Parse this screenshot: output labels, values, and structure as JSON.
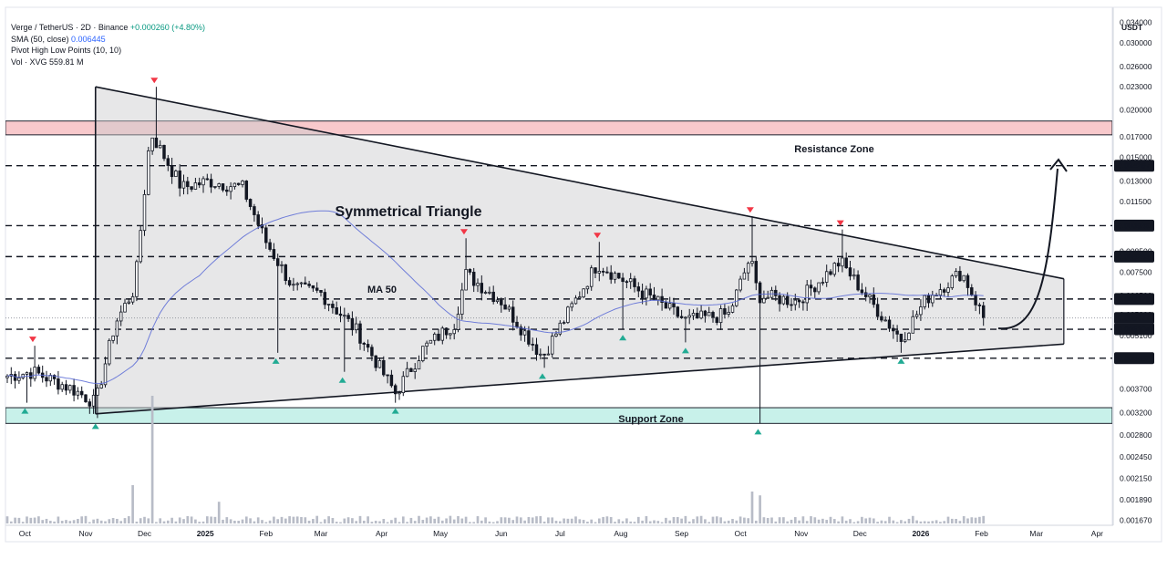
{
  "legend": {
    "symbol": "Verge / TetherUS · 2D · Binance",
    "change": "+0.000260 (+4.80%)",
    "sma_label": "SMA (50, close)",
    "sma_value": "0.006445",
    "pivot_label": "Pivot High Low Points (10, 10)",
    "vol_label": "Vol · XVG",
    "vol_value": "559.81 M"
  },
  "price_axis": {
    "currency": "USDT",
    "ticks": [
      "0.034000",
      "0.030000",
      "0.026000",
      "0.023000",
      "0.020000",
      "0.017000",
      "0.015000",
      "0.013000",
      "0.011500",
      "0.008500",
      "0.007500",
      "0.006500",
      "0.005800",
      "0.005100",
      "0.004500",
      "0.003700",
      "0.003200",
      "0.002800",
      "0.002450",
      "0.002150",
      "0.001890",
      "0.001670"
    ],
    "badges": [
      {
        "value": "0.014267",
        "style": "dark"
      },
      {
        "value": "0.009930",
        "style": "dark"
      },
      {
        "value": "0.008233",
        "style": "dark"
      },
      {
        "value": "0.006370",
        "style": "dark"
      },
      {
        "value": "0.005677",
        "style": "dark"
      },
      {
        "value": "13:12:12",
        "style": "countdown"
      },
      {
        "value": "0.005304",
        "style": "dark"
      },
      {
        "value": "0.004452",
        "style": "dark"
      }
    ]
  },
  "time_axis": {
    "labels": [
      "Oct",
      "Nov",
      "Dec",
      "2025",
      "Feb",
      "Mar",
      "Apr",
      "May",
      "Jun",
      "Jul",
      "Aug",
      "Sep",
      "Oct",
      "Nov",
      "Dec",
      "2026",
      "Feb",
      "Mar",
      "Apr"
    ],
    "bold": [
      "2025",
      "2026"
    ]
  },
  "annotations": {
    "triangle_title": "Symmetrical Triangle",
    "ma_label": "MA 50",
    "resistance_label": "Resistance Zone",
    "support_label": "Support Zone"
  },
  "chart_data": {
    "type": "candlestick",
    "title": "",
    "symbol": "Verge / TetherUS · 2D · Binance",
    "y_scale": "log",
    "ylim": [
      0.00155,
      0.036
    ],
    "x_range": [
      "2024-09-22",
      "2026-04-05"
    ],
    "key_levels": [
      0.014267,
      0.00993,
      0.008233,
      0.00637,
      0.005304,
      0.004452
    ],
    "last_price": 0.005677,
    "countdown": "13:12:12",
    "resistance_zone": [
      0.0172,
      0.0187
    ],
    "support_zone": [
      0.003,
      0.0033
    ],
    "sma_50_last": 0.006445,
    "pivot_highs": [
      {
        "date": "2024-10-05",
        "price": 0.0048
      },
      {
        "date": "2024-12-06",
        "price": 0.023
      },
      {
        "date": "2025-05-13",
        "price": 0.0092
      },
      {
        "date": "2025-07-20",
        "price": 0.009
      },
      {
        "date": "2025-10-06",
        "price": 0.0105
      },
      {
        "date": "2025-11-21",
        "price": 0.0097
      }
    ],
    "pivot_lows": [
      {
        "date": "2024-10-01",
        "price": 0.0034
      },
      {
        "date": "2024-11-06",
        "price": 0.0031
      },
      {
        "date": "2025-02-06",
        "price": 0.0046
      },
      {
        "date": "2025-03-12",
        "price": 0.0041
      },
      {
        "date": "2025-04-08",
        "price": 0.0034
      },
      {
        "date": "2025-06-22",
        "price": 0.0042
      },
      {
        "date": "2025-08-02",
        "price": 0.0053
      },
      {
        "date": "2025-09-03",
        "price": 0.0049
      },
      {
        "date": "2025-10-10",
        "price": 0.003
      },
      {
        "date": "2025-12-22",
        "price": 0.0046
      }
    ],
    "close_anchors": [
      {
        "date": "2024-09-22",
        "close": 0.004
      },
      {
        "date": "2024-10-05",
        "close": 0.0041
      },
      {
        "date": "2024-10-25",
        "close": 0.0037
      },
      {
        "date": "2024-11-06",
        "close": 0.0034
      },
      {
        "date": "2024-11-16",
        "close": 0.0055
      },
      {
        "date": "2024-11-26",
        "close": 0.0068
      },
      {
        "date": "2024-12-04",
        "close": 0.0175
      },
      {
        "date": "2024-12-20",
        "close": 0.0125
      },
      {
        "date": "2025-01-03",
        "close": 0.013
      },
      {
        "date": "2025-01-20",
        "close": 0.0125
      },
      {
        "date": "2025-02-01",
        "close": 0.009
      },
      {
        "date": "2025-02-15",
        "close": 0.0068
      },
      {
        "date": "2025-03-01",
        "close": 0.0066
      },
      {
        "date": "2025-03-20",
        "close": 0.0052
      },
      {
        "date": "2025-04-08",
        "close": 0.0036
      },
      {
        "date": "2025-04-22",
        "close": 0.0047
      },
      {
        "date": "2025-05-08",
        "close": 0.0055
      },
      {
        "date": "2025-05-14",
        "close": 0.0074
      },
      {
        "date": "2025-06-01",
        "close": 0.0063
      },
      {
        "date": "2025-06-22",
        "close": 0.0045
      },
      {
        "date": "2025-07-08",
        "close": 0.0062
      },
      {
        "date": "2025-07-20",
        "close": 0.0079
      },
      {
        "date": "2025-08-05",
        "close": 0.007
      },
      {
        "date": "2025-09-03",
        "close": 0.0056
      },
      {
        "date": "2025-09-25",
        "close": 0.0058
      },
      {
        "date": "2025-10-06",
        "close": 0.0082
      },
      {
        "date": "2025-10-10",
        "close": 0.0065
      },
      {
        "date": "2025-10-30",
        "close": 0.0063
      },
      {
        "date": "2025-11-21",
        "close": 0.008
      },
      {
        "date": "2025-12-05",
        "close": 0.0064
      },
      {
        "date": "2025-12-22",
        "close": 0.005
      },
      {
        "date": "2026-01-04",
        "close": 0.0064
      },
      {
        "date": "2026-01-22",
        "close": 0.0075
      },
      {
        "date": "2026-02-02",
        "close": 0.0057
      }
    ],
    "volume_spikes": [
      {
        "date": "2024-12-04",
        "vol_rel": 1.0
      },
      {
        "date": "2024-11-24",
        "vol_rel": 0.3
      },
      {
        "date": "2025-10-06",
        "vol_rel": 0.25
      },
      {
        "date": "2025-10-10",
        "vol_rel": 0.22
      },
      {
        "date": "2025-01-07",
        "vol_rel": 0.17
      }
    ]
  }
}
